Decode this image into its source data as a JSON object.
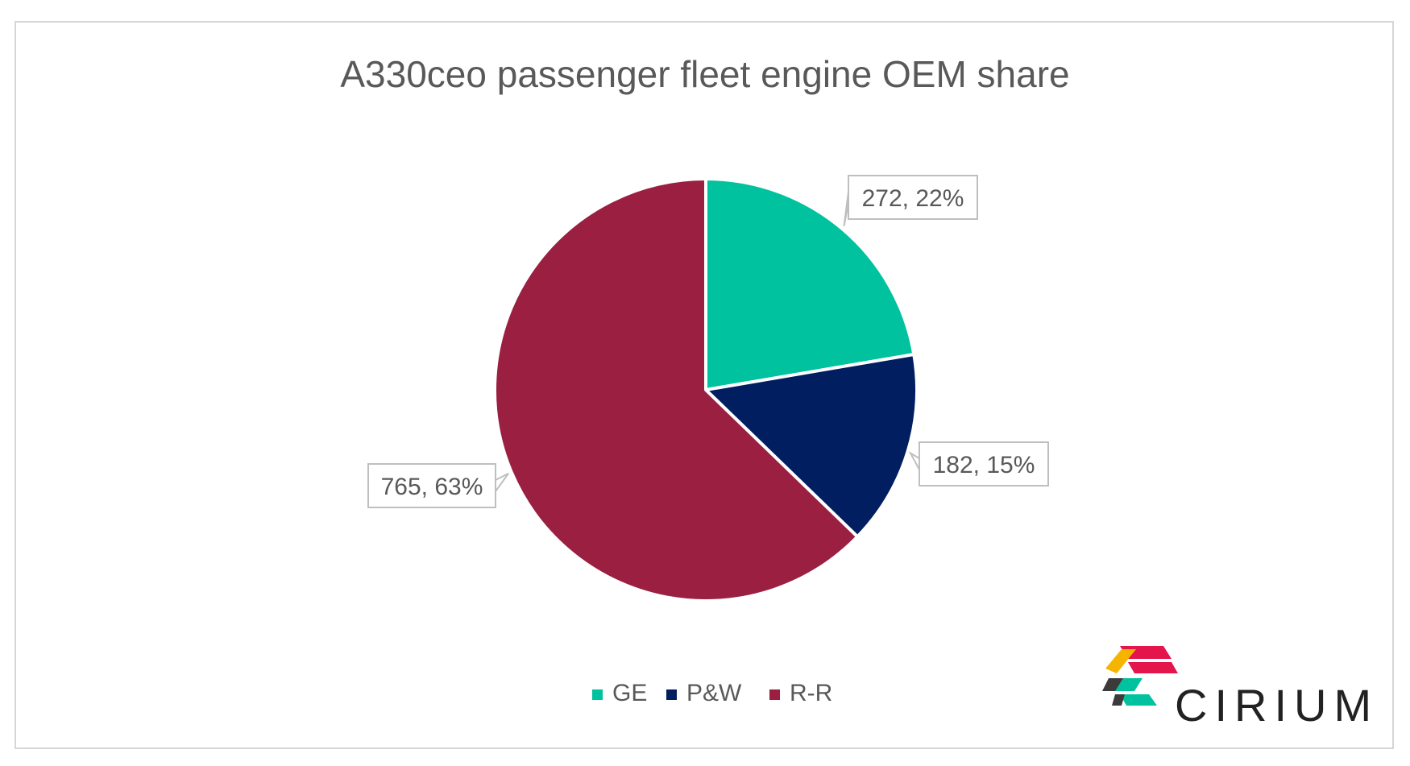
{
  "chart_data": {
    "type": "pie",
    "title": "A330ceo passenger fleet engine OEM share",
    "categories": [
      "GE",
      "P&W",
      "R-R"
    ],
    "values": [
      272,
      182,
      765
    ],
    "percent_labels": [
      "22%",
      "15%",
      "63%"
    ],
    "data_labels": [
      "272, 22%",
      "182, 15%",
      "765, 63%"
    ],
    "colors": [
      "#00C29E",
      "#001E60",
      "#9A1F41"
    ],
    "start_angle_deg": 0,
    "direction": "clockwise",
    "legend_position": "bottom",
    "legend": [
      {
        "label": "GE",
        "color": "#00C29E"
      },
      {
        "label": "P&W",
        "color": "#001E60"
      },
      {
        "label": "R-R",
        "color": "#9A1F41"
      }
    ]
  },
  "brand": {
    "name": "CIRIUM",
    "logo_colors": [
      "#E4154B",
      "#F5B400",
      "#00C29E",
      "#3B3B3B"
    ]
  }
}
